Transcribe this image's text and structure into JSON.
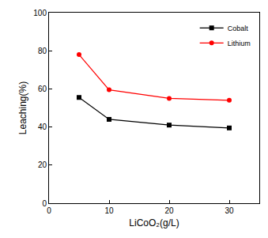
{
  "chart_data": {
    "type": "line",
    "x_label": "LiCoO₂(g/L)",
    "y_label": "Leaching(%)",
    "x": [
      5,
      10,
      20,
      30
    ],
    "series": [
      {
        "name": "Cobalt",
        "color": "#000000",
        "marker": "square",
        "values": [
          55.5,
          44,
          41,
          39.5
        ]
      },
      {
        "name": "Lithium",
        "color": "#ff0000",
        "marker": "circle",
        "values": [
          78,
          59.5,
          55,
          54
        ]
      }
    ],
    "xlim": [
      0,
      35
    ],
    "xticks": [
      0,
      10,
      20,
      30
    ],
    "ylim": [
      0,
      100
    ],
    "yticks": [
      0,
      20,
      40,
      60,
      80,
      100
    ],
    "grid": false,
    "legend": "upper right"
  }
}
